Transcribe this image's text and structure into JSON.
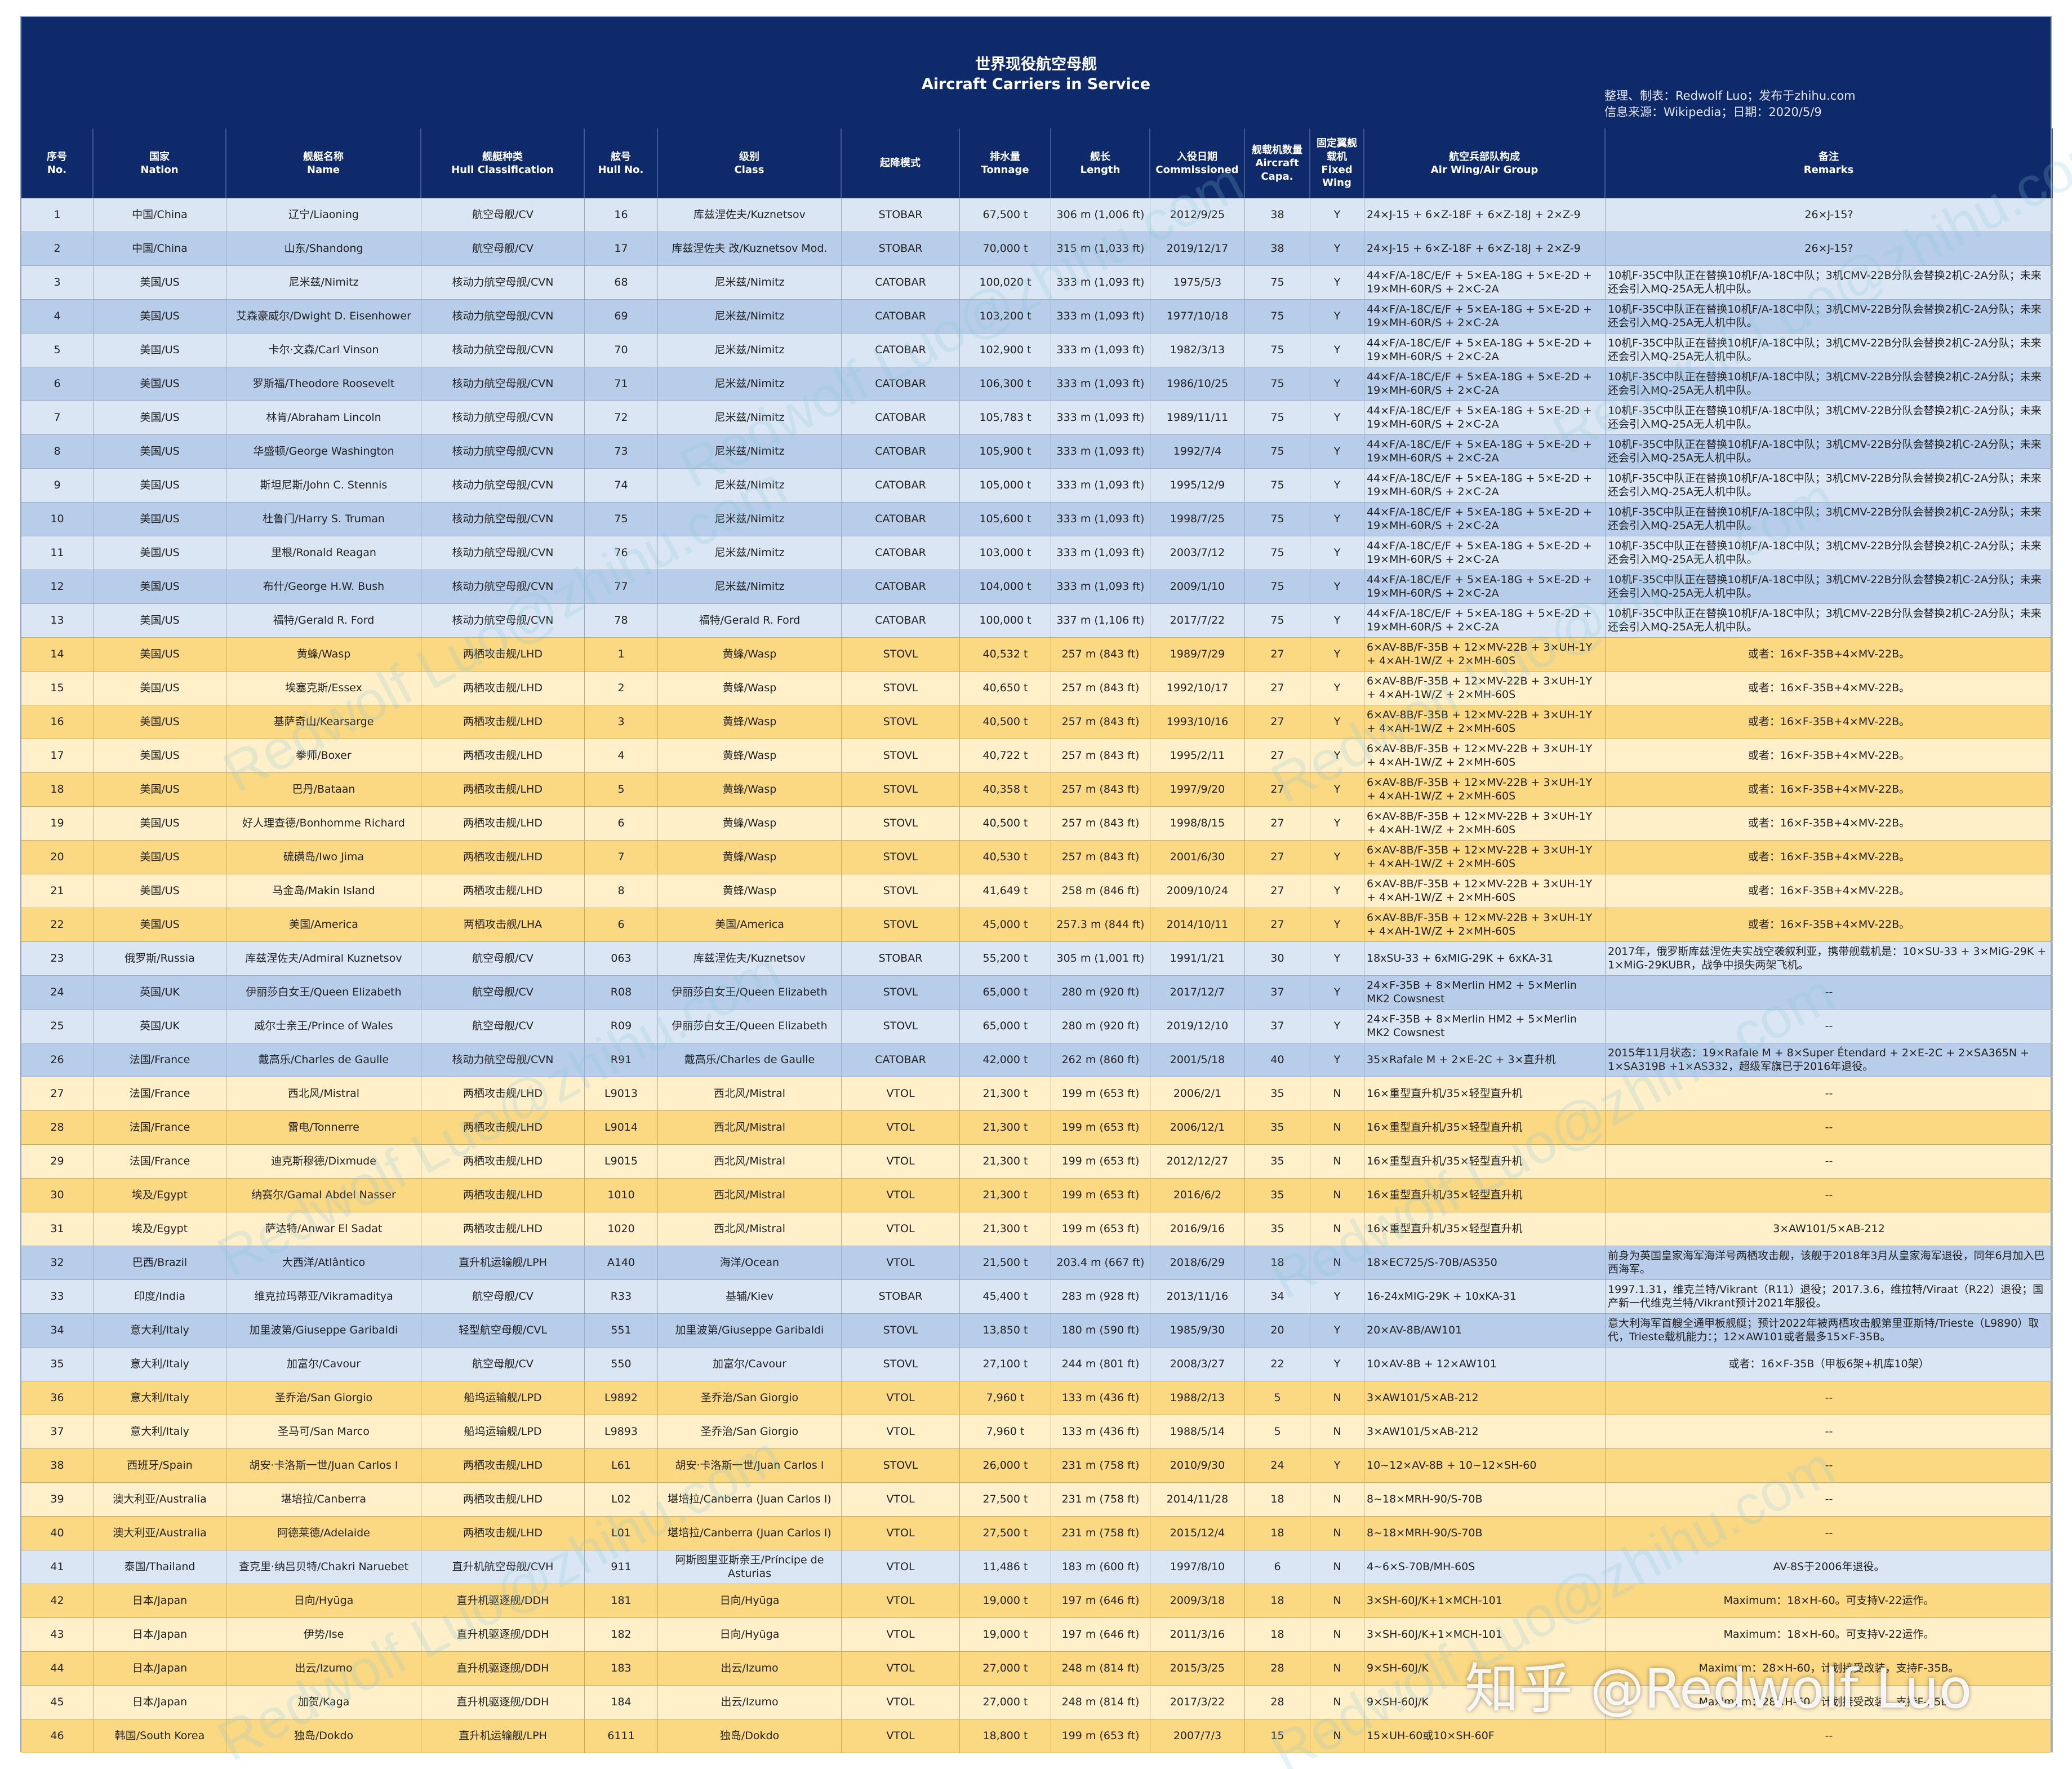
{
  "title": {
    "zh": "世界现役航空母舰",
    "en": "Aircraft Carriers in Service",
    "credit_line1": "整理、制表：Redwolf Luo；发布于zhihu.com",
    "credit_line2": "信息来源：Wikipedia；日期：2020/5/9"
  },
  "headers": [
    {
      "zh": "序号",
      "en": "No."
    },
    {
      "zh": "国家",
      "en": "Nation"
    },
    {
      "zh": "舰艇名称",
      "en": "Name"
    },
    {
      "zh": "舰艇种类",
      "en": "Hull Classification"
    },
    {
      "zh": "舷号",
      "en": "Hull No."
    },
    {
      "zh": "级别",
      "en": "Class"
    },
    {
      "zh": "起降模式",
      "en": ""
    },
    {
      "zh": "排水量",
      "en": "Tonnage"
    },
    {
      "zh": "舰长",
      "en": "Length"
    },
    {
      "zh": "入役日期",
      "en": "Commissioned"
    },
    {
      "zh": "舰载机数量",
      "en": "Aircraft Capa."
    },
    {
      "zh": "固定翼舰载机",
      "en": "Fixed Wing"
    },
    {
      "zh": "航空兵部队构成",
      "en": "Air Wing/Air Group"
    },
    {
      "zh": "备注",
      "en": "Remarks"
    }
  ],
  "rows": [
    [
      "1",
      "中国/China",
      "辽宁/Liaoning",
      "航空母舰/CV",
      "16",
      "库兹涅佐夫/Kuznetsov",
      "STOBAR",
      "67,500 t",
      "306 m (1,006 ft)",
      "2012/9/25",
      "38",
      "Y",
      "24×J-15 + 6×Z-18F + 6×Z-18J + 2×Z-9",
      "26×J-15?"
    ],
    [
      "2",
      "中国/China",
      "山东/Shandong",
      "航空母舰/CV",
      "17",
      "库兹涅佐夫 改/Kuznetsov Mod.",
      "STOBAR",
      "70,000 t",
      "315 m (1,033 ft)",
      "2019/12/17",
      "38",
      "Y",
      "24×J-15 + 6×Z-18F + 6×Z-18J + 2×Z-9",
      "26×J-15?"
    ],
    [
      "3",
      "美国/US",
      "尼米兹/Nimitz",
      "核动力航空母舰/CVN",
      "68",
      "尼米兹/Nimitz",
      "CATOBAR",
      "100,020 t",
      "333 m (1,093 ft)",
      "1975/5/3",
      "75",
      "Y",
      "44×F/A-18C/E/F + 5×EA-18G + 5×E-2D + 19×MH-60R/S + 2×C-2A",
      "10机F-35C中队正在替换10机F/A-18C中队；3机CMV-22B分队会替换2机C-2A分队；未来还会引入MQ-25A无人机中队。"
    ],
    [
      "4",
      "美国/US",
      "艾森豪威尔/Dwight D. Eisenhower",
      "核动力航空母舰/CVN",
      "69",
      "尼米兹/Nimitz",
      "CATOBAR",
      "103,200 t",
      "333 m (1,093 ft)",
      "1977/10/18",
      "75",
      "Y",
      "44×F/A-18C/E/F + 5×EA-18G + 5×E-2D + 19×MH-60R/S + 2×C-2A",
      "10机F-35C中队正在替换10机F/A-18C中队；3机CMV-22B分队会替换2机C-2A分队；未来还会引入MQ-25A无人机中队。"
    ],
    [
      "5",
      "美国/US",
      "卡尔·文森/Carl Vinson",
      "核动力航空母舰/CVN",
      "70",
      "尼米兹/Nimitz",
      "CATOBAR",
      "102,900 t",
      "333 m (1,093 ft)",
      "1982/3/13",
      "75",
      "Y",
      "44×F/A-18C/E/F + 5×EA-18G + 5×E-2D + 19×MH-60R/S + 2×C-2A",
      "10机F-35C中队正在替换10机F/A-18C中队；3机CMV-22B分队会替换2机C-2A分队；未来还会引入MQ-25A无人机中队。"
    ],
    [
      "6",
      "美国/US",
      "罗斯福/Theodore Roosevelt",
      "核动力航空母舰/CVN",
      "71",
      "尼米兹/Nimitz",
      "CATOBAR",
      "106,300 t",
      "333 m (1,093 ft)",
      "1986/10/25",
      "75",
      "Y",
      "44×F/A-18C/E/F + 5×EA-18G + 5×E-2D + 19×MH-60R/S + 2×C-2A",
      "10机F-35C中队正在替换10机F/A-18C中队；3机CMV-22B分队会替换2机C-2A分队；未来还会引入MQ-25A无人机中队。"
    ],
    [
      "7",
      "美国/US",
      "林肯/Abraham Lincoln",
      "核动力航空母舰/CVN",
      "72",
      "尼米兹/Nimitz",
      "CATOBAR",
      "105,783 t",
      "333 m (1,093 ft)",
      "1989/11/11",
      "75",
      "Y",
      "44×F/A-18C/E/F + 5×EA-18G + 5×E-2D + 19×MH-60R/S + 2×C-2A",
      "10机F-35C中队正在替换10机F/A-18C中队；3机CMV-22B分队会替换2机C-2A分队；未来还会引入MQ-25A无人机中队。"
    ],
    [
      "8",
      "美国/US",
      "华盛顿/George Washington",
      "核动力航空母舰/CVN",
      "73",
      "尼米兹/Nimitz",
      "CATOBAR",
      "105,900 t",
      "333 m (1,093 ft)",
      "1992/7/4",
      "75",
      "Y",
      "44×F/A-18C/E/F + 5×EA-18G + 5×E-2D + 19×MH-60R/S + 2×C-2A",
      "10机F-35C中队正在替换10机F/A-18C中队；3机CMV-22B分队会替换2机C-2A分队；未来还会引入MQ-25A无人机中队。"
    ],
    [
      "9",
      "美国/US",
      "斯坦尼斯/John C. Stennis",
      "核动力航空母舰/CVN",
      "74",
      "尼米兹/Nimitz",
      "CATOBAR",
      "105,000 t",
      "333 m (1,093 ft)",
      "1995/12/9",
      "75",
      "Y",
      "44×F/A-18C/E/F + 5×EA-18G + 5×E-2D + 19×MH-60R/S + 2×C-2A",
      "10机F-35C中队正在替换10机F/A-18C中队；3机CMV-22B分队会替换2机C-2A分队；未来还会引入MQ-25A无人机中队。"
    ],
    [
      "10",
      "美国/US",
      "杜鲁门/Harry S. Truman",
      "核动力航空母舰/CVN",
      "75",
      "尼米兹/Nimitz",
      "CATOBAR",
      "105,600 t",
      "333 m (1,093 ft)",
      "1998/7/25",
      "75",
      "Y",
      "44×F/A-18C/E/F + 5×EA-18G + 5×E-2D + 19×MH-60R/S + 2×C-2A",
      "10机F-35C中队正在替换10机F/A-18C中队；3机CMV-22B分队会替换2机C-2A分队；未来还会引入MQ-25A无人机中队。"
    ],
    [
      "11",
      "美国/US",
      "里根/Ronald Reagan",
      "核动力航空母舰/CVN",
      "76",
      "尼米兹/Nimitz",
      "CATOBAR",
      "103,000 t",
      "333 m (1,093 ft)",
      "2003/7/12",
      "75",
      "Y",
      "44×F/A-18C/E/F + 5×EA-18G + 5×E-2D + 19×MH-60R/S + 2×C-2A",
      "10机F-35C中队正在替换10机F/A-18C中队；3机CMV-22B分队会替换2机C-2A分队；未来还会引入MQ-25A无人机中队。"
    ],
    [
      "12",
      "美国/US",
      "布什/George H.W. Bush",
      "核动力航空母舰/CVN",
      "77",
      "尼米兹/Nimitz",
      "CATOBAR",
      "104,000 t",
      "333 m (1,093 ft)",
      "2009/1/10",
      "75",
      "Y",
      "44×F/A-18C/E/F + 5×EA-18G + 5×E-2D + 19×MH-60R/S + 2×C-2A",
      "10机F-35C中队正在替换10机F/A-18C中队；3机CMV-22B分队会替换2机C-2A分队；未来还会引入MQ-25A无人机中队。"
    ],
    [
      "13",
      "美国/US",
      "福特/Gerald R. Ford",
      "核动力航空母舰/CVN",
      "78",
      "福特/Gerald R. Ford",
      "CATOBAR",
      "100,000 t",
      "337 m (1,106 ft)",
      "2017/7/22",
      "75",
      "Y",
      "44×F/A-18C/E/F + 5×EA-18G + 5×E-2D + 19×MH-60R/S + 2×C-2A",
      "10机F-35C中队正在替换10机F/A-18C中队；3机CMV-22B分队会替换2机C-2A分队；未来还会引入MQ-25A无人机中队。"
    ],
    [
      "14",
      "美国/US",
      "黄蜂/Wasp",
      "两栖攻击舰/LHD",
      "1",
      "黄蜂/Wasp",
      "STOVL",
      "40,532 t",
      "257 m (843 ft)",
      "1989/7/29",
      "27",
      "Y",
      "6×AV-8B/F-35B + 12×MV-22B + 3×UH-1Y + 4×AH-1W/Z + 2×MH-60S",
      "或者：16×F-35B+4×MV-22B。"
    ],
    [
      "15",
      "美国/US",
      "埃塞克斯/Essex",
      "两栖攻击舰/LHD",
      "2",
      "黄蜂/Wasp",
      "STOVL",
      "40,650 t",
      "257 m (843 ft)",
      "1992/10/17",
      "27",
      "Y",
      "6×AV-8B/F-35B + 12×MV-22B + 3×UH-1Y + 4×AH-1W/Z + 2×MH-60S",
      "或者：16×F-35B+4×MV-22B。"
    ],
    [
      "16",
      "美国/US",
      "基萨奇山/Kearsarge",
      "两栖攻击舰/LHD",
      "3",
      "黄蜂/Wasp",
      "STOVL",
      "40,500 t",
      "257 m (843 ft)",
      "1993/10/16",
      "27",
      "Y",
      "6×AV-8B/F-35B + 12×MV-22B + 3×UH-1Y + 4×AH-1W/Z + 2×MH-60S",
      "或者：16×F-35B+4×MV-22B。"
    ],
    [
      "17",
      "美国/US",
      "拳师/Boxer",
      "两栖攻击舰/LHD",
      "4",
      "黄蜂/Wasp",
      "STOVL",
      "40,722 t",
      "257 m (843 ft)",
      "1995/2/11",
      "27",
      "Y",
      "6×AV-8B/F-35B + 12×MV-22B + 3×UH-1Y + 4×AH-1W/Z + 2×MH-60S",
      "或者：16×F-35B+4×MV-22B。"
    ],
    [
      "18",
      "美国/US",
      "巴丹/Bataan",
      "两栖攻击舰/LHD",
      "5",
      "黄蜂/Wasp",
      "STOVL",
      "40,358 t",
      "257 m (843 ft)",
      "1997/9/20",
      "27",
      "Y",
      "6×AV-8B/F-35B + 12×MV-22B + 3×UH-1Y + 4×AH-1W/Z + 2×MH-60S",
      "或者：16×F-35B+4×MV-22B。"
    ],
    [
      "19",
      "美国/US",
      "好人理查德/Bonhomme Richard",
      "两栖攻击舰/LHD",
      "6",
      "黄蜂/Wasp",
      "STOVL",
      "40,500 t",
      "257 m (843 ft)",
      "1998/8/15",
      "27",
      "Y",
      "6×AV-8B/F-35B + 12×MV-22B + 3×UH-1Y + 4×AH-1W/Z + 2×MH-60S",
      "或者：16×F-35B+4×MV-22B。"
    ],
    [
      "20",
      "美国/US",
      "硫磺岛/Iwo Jima",
      "两栖攻击舰/LHD",
      "7",
      "黄蜂/Wasp",
      "STOVL",
      "40,530 t",
      "257 m (843 ft)",
      "2001/6/30",
      "27",
      "Y",
      "6×AV-8B/F-35B + 12×MV-22B + 3×UH-1Y + 4×AH-1W/Z + 2×MH-60S",
      "或者：16×F-35B+4×MV-22B。"
    ],
    [
      "21",
      "美国/US",
      "马金岛/Makin Island",
      "两栖攻击舰/LHD",
      "8",
      "黄蜂/Wasp",
      "STOVL",
      "41,649 t",
      "258 m (846 ft)",
      "2009/10/24",
      "27",
      "Y",
      "6×AV-8B/F-35B + 12×MV-22B + 3×UH-1Y + 4×AH-1W/Z + 2×MH-60S",
      "或者：16×F-35B+4×MV-22B。"
    ],
    [
      "22",
      "美国/US",
      "美国/America",
      "两栖攻击舰/LHA",
      "6",
      "美国/America",
      "STOVL",
      "45,000 t",
      "257.3 m (844 ft)",
      "2014/10/11",
      "27",
      "Y",
      "6×AV-8B/F-35B + 12×MV-22B + 3×UH-1Y + 4×AH-1W/Z + 2×MH-60S",
      "或者：16×F-35B+4×MV-22B。"
    ],
    [
      "23",
      "俄罗斯/Russia",
      "库兹涅佐夫/Admiral Kuznetsov",
      "航空母舰/CV",
      "063",
      "库兹涅佐夫/Kuznetsov",
      "STOBAR",
      "55,200 t",
      "305 m (1,001 ft)",
      "1991/1/21",
      "30",
      "Y",
      "18xSU-33 + 6xMIG-29K + 6xKA-31",
      "2017年，俄罗斯库兹涅佐夫实战空袭叙利亚，携带舰载机是：10×SU-33 + 3×MiG-29K + 1×MiG-29KUBR，战争中损失两架飞机。"
    ],
    [
      "24",
      "英国/UK",
      "伊丽莎白女王/Queen Elizabeth",
      "航空母舰/CV",
      "R08",
      "伊丽莎白女王/Queen Elizabeth",
      "STOVL",
      "65,000 t",
      "280 m (920 ft)",
      "2017/12/7",
      "37",
      "Y",
      "24×F-35B + 8×Merlin HM2 + 5×Merlin MK2 Cowsnest",
      "--"
    ],
    [
      "25",
      "英国/UK",
      "威尔士亲王/Prince of Wales",
      "航空母舰/CV",
      "R09",
      "伊丽莎白女王/Queen Elizabeth",
      "STOVL",
      "65,000 t",
      "280 m (920 ft)",
      "2019/12/10",
      "37",
      "Y",
      "24×F-35B + 8×Merlin HM2 + 5×Merlin MK2 Cowsnest",
      "--"
    ],
    [
      "26",
      "法国/France",
      "戴高乐/Charles de Gaulle",
      "核动力航空母舰/CVN",
      "R91",
      "戴高乐/Charles de Gaulle",
      "CATOBAR",
      "42,000 t",
      "262 m (860 ft)",
      "2001/5/18",
      "40",
      "Y",
      "35×Rafale M + 2×E-2C + 3×直升机",
      "2015年11月状态：19×Rafale M + 8×Super Étendard + 2×E-2C + 2×SA365N + 1×SA319B +1×AS332，超级军旗已于2016年退役。"
    ],
    [
      "27",
      "法国/France",
      "西北风/Mistral",
      "两栖攻击舰/LHD",
      "L9013",
      "西北风/Mistral",
      "VTOL",
      "21,300 t",
      "199 m (653 ft)",
      "2006/2/1",
      "35",
      "N",
      "16×重型直升机/35×轻型直升机",
      "--"
    ],
    [
      "28",
      "法国/France",
      "雷电/Tonnerre",
      "两栖攻击舰/LHD",
      "L9014",
      "西北风/Mistral",
      "VTOL",
      "21,300 t",
      "199 m (653 ft)",
      "2006/12/1",
      "35",
      "N",
      "16×重型直升机/35×轻型直升机",
      "--"
    ],
    [
      "29",
      "法国/France",
      "迪克斯穆德/Dixmude",
      "两栖攻击舰/LHD",
      "L9015",
      "西北风/Mistral",
      "VTOL",
      "21,300 t",
      "199 m (653 ft)",
      "2012/12/27",
      "35",
      "N",
      "16×重型直升机/35×轻型直升机",
      "--"
    ],
    [
      "30",
      "埃及/Egypt",
      "纳赛尔/Gamal Abdel Nasser",
      "两栖攻击舰/LHD",
      "1010",
      "西北风/Mistral",
      "VTOL",
      "21,300 t",
      "199 m (653 ft)",
      "2016/6/2",
      "35",
      "N",
      "16×重型直升机/35×轻型直升机",
      "--"
    ],
    [
      "31",
      "埃及/Egypt",
      "萨达特/Anwar El Sadat",
      "两栖攻击舰/LHD",
      "1020",
      "西北风/Mistral",
      "VTOL",
      "21,300 t",
      "199 m (653 ft)",
      "2016/9/16",
      "35",
      "N",
      "16×重型直升机/35×轻型直升机",
      "3×AW101/5×AB-212"
    ],
    [
      "32",
      "巴西/Brazil",
      "大西洋/Atlântico",
      "直升机运输舰/LPH",
      "A140",
      "海洋/Ocean",
      "VTOL",
      "21,500 t",
      "203.4 m (667 ft)",
      "2018/6/29",
      "18",
      "N",
      "18×EC725/S-70B/AS350",
      "前身为英国皇家海军海洋号两栖攻击舰，该舰于2018年3月从皇家海军退役，同年6月加入巴西海军。"
    ],
    [
      "33",
      "印度/India",
      "维克拉玛蒂亚/Vikramaditya",
      "航空母舰/CV",
      "R33",
      "基辅/Kiev",
      "STOBAR",
      "45,400 t",
      "283 m (928 ft)",
      "2013/11/16",
      "34",
      "Y",
      "16-24xMIG-29K + 10xKA-31",
      "1997.1.31，维克兰特/Vikrant（R11）退役；2017.3.6，维拉特/Viraat（R22）退役；国产新一代维克兰特/Vikrant预计2021年服役。"
    ],
    [
      "34",
      "意大利/Italy",
      "加里波第/Giuseppe Garibaldi",
      "轻型航空母舰/CVL",
      "551",
      "加里波第/Giuseppe Garibaldi",
      "STOVL",
      "13,850 t",
      "180 m (590 ft)",
      "1985/9/30",
      "20",
      "Y",
      "20×AV-8B/AW101",
      "意大利海军首艘全通甲板舰艇；预计2022年被两栖攻击舰第里亚斯特/Trieste（L9890）取代，Trieste载机能力：；12×AW101或者最多15×F-35B。"
    ],
    [
      "35",
      "意大利/Italy",
      "加富尔/Cavour",
      "航空母舰/CV",
      "550",
      "加富尔/Cavour",
      "STOVL",
      "27,100 t",
      "244 m (801 ft)",
      "2008/3/27",
      "22",
      "Y",
      "10×AV-8B + 12×AW101",
      "或者：16×F-35B（甲板6架+机库10架）"
    ],
    [
      "36",
      "意大利/Italy",
      "圣乔治/San Giorgio",
      "船坞运输舰/LPD",
      "L9892",
      "圣乔治/San Giorgio",
      "VTOL",
      "7,960 t",
      "133 m (436 ft)",
      "1988/2/13",
      "5",
      "N",
      "3×AW101/5×AB-212",
      "--"
    ],
    [
      "37",
      "意大利/Italy",
      "圣马可/San Marco",
      "船坞运输舰/LPD",
      "L9893",
      "圣乔治/San Giorgio",
      "VTOL",
      "7,960 t",
      "133 m (436 ft)",
      "1988/5/14",
      "5",
      "N",
      "3×AW101/5×AB-212",
      "--"
    ],
    [
      "38",
      "西班牙/Spain",
      "胡安·卡洛斯一世/Juan Carlos I",
      "两栖攻击舰/LHD",
      "L61",
      "胡安·卡洛斯一世/Juan Carlos I",
      "STOVL",
      "26,000 t",
      "231 m (758 ft)",
      "2010/9/30",
      "24",
      "Y",
      "10~12×AV-8B + 10~12×SH-60",
      "--"
    ],
    [
      "39",
      "澳大利亚/Australia",
      "堪培拉/Canberra",
      "两栖攻击舰/LHD",
      "L02",
      "堪培拉/Canberra (Juan Carlos I)",
      "VTOL",
      "27,500 t",
      "231 m (758 ft)",
      "2014/11/28",
      "18",
      "N",
      "8~18×MRH-90/S-70B",
      "--"
    ],
    [
      "40",
      "澳大利亚/Australia",
      "阿德莱德/Adelaide",
      "两栖攻击舰/LHD",
      "L01",
      "堪培拉/Canberra (Juan Carlos I)",
      "VTOL",
      "27,500 t",
      "231 m (758 ft)",
      "2015/12/4",
      "18",
      "N",
      "8~18×MRH-90/S-70B",
      "--"
    ],
    [
      "41",
      "泰国/Thailand",
      "查克里·纳吕贝特/Chakri Naruebet",
      "直升机航空母舰/CVH",
      "911",
      "阿斯图里亚斯亲王/Príncipe de Asturias",
      "VTOL",
      "11,486 t",
      "183 m (600 ft)",
      "1997/8/10",
      "6",
      "N",
      "4~6×S-70B/MH-60S",
      "AV-8S于2006年退役。"
    ],
    [
      "42",
      "日本/Japan",
      "日向/Hyūga",
      "直升机驱逐舰/DDH",
      "181",
      "日向/Hyūga",
      "VTOL",
      "19,000 t",
      "197 m (646 ft)",
      "2009/3/18",
      "18",
      "N",
      "3×SH-60J/K+1×MCH-101",
      "Maximum：18×H-60。可支持V-22运作。"
    ],
    [
      "43",
      "日本/Japan",
      "伊势/Ise",
      "直升机驱逐舰/DDH",
      "182",
      "日向/Hyūga",
      "VTOL",
      "19,000 t",
      "197 m (646 ft)",
      "2011/3/16",
      "18",
      "N",
      "3×SH-60J/K+1×MCH-101",
      "Maximum：18×H-60。可支持V-22运作。"
    ],
    [
      "44",
      "日本/Japan",
      "出云/Izumo",
      "直升机驱逐舰/DDH",
      "183",
      "出云/Izumo",
      "VTOL",
      "27,000 t",
      "248 m (814 ft)",
      "2015/3/25",
      "28",
      "N",
      "9×SH-60J/K",
      "Maximum：28×H-60，计划接受改装，支持F-35B。"
    ],
    [
      "45",
      "日本/Japan",
      "加贺/Kaga",
      "直升机驱逐舰/DDH",
      "184",
      "出云/Izumo",
      "VTOL",
      "27,000 t",
      "248 m (814 ft)",
      "2017/3/22",
      "28",
      "N",
      "9×SH-60J/K",
      "Maximum：28×H-60，计划接受改装，支持F-35B。"
    ],
    [
      "46",
      "韩国/South Korea",
      "独岛/Dokdo",
      "直升机运输舰/LPH",
      "6111",
      "独岛/Dokdo",
      "VTOL",
      "18,800 t",
      "199 m (653 ft)",
      "2007/7/3",
      "15",
      "N",
      "15×UH-60或10×SH-60F",
      "--"
    ]
  ],
  "row_groups": [
    "blue",
    "blue",
    "blue",
    "blue",
    "blue",
    "blue",
    "blue",
    "blue",
    "blue",
    "blue",
    "blue",
    "blue",
    "blue",
    "yellow",
    "yellow",
    "yellow",
    "yellow",
    "yellow",
    "yellow",
    "yellow",
    "yellow",
    "yellow",
    "blue",
    "blue",
    "blue",
    "blue",
    "yellow",
    "yellow",
    "yellow",
    "yellow",
    "yellow",
    "blue",
    "blue",
    "blue",
    "blue",
    "yellow",
    "yellow",
    "yellow",
    "yellow",
    "yellow",
    "blue",
    "yellow",
    "yellow",
    "yellow",
    "yellow",
    "yellow"
  ],
  "colors": {
    "header_bg": "#0f2a6b",
    "blue_light": "#dbe6f4",
    "blue_dark": "#b8cde9",
    "yellow_light": "#fff0c9",
    "yellow_dark": "#fbd882"
  },
  "watermark": "Redwolf Luo@zhihu.com",
  "brand": "知乎 @Redwolf Luo"
}
